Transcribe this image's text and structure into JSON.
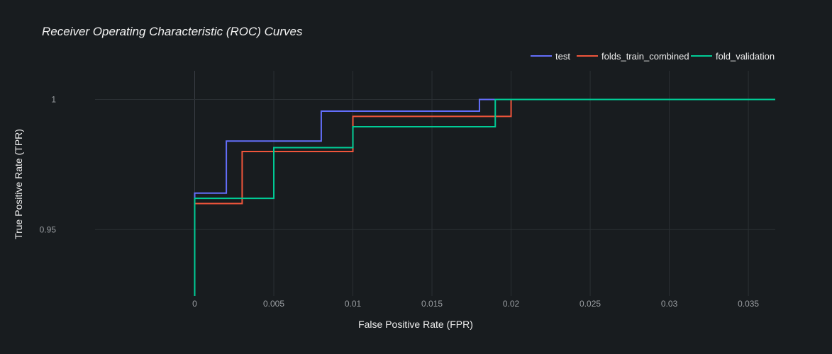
{
  "chart_data": {
    "type": "line",
    "title": "Receiver Operating Characteristic (ROC) Curves",
    "xlabel": "False Positive Rate (FPR)",
    "ylabel": "True Positive Rate (TPR)",
    "xlim": [
      -0.0063,
      0.0367
    ],
    "ylim": [
      0.9245,
      1.011
    ],
    "x_ticks": [
      0,
      0.005,
      0.01,
      0.015,
      0.02,
      0.025,
      0.03,
      0.035
    ],
    "x_tick_labels": [
      "0",
      "0.005",
      "0.01",
      "0.015",
      "0.02",
      "0.025",
      "0.03",
      "0.035"
    ],
    "y_ticks": [
      0.95,
      1
    ],
    "y_tick_labels": [
      "0.95",
      "1"
    ],
    "grid": true,
    "legend_position": "top-right",
    "line_shape": "step-after",
    "series": [
      {
        "name": "test",
        "color": "#636efa",
        "x": [
          0,
          0,
          0.002,
          0.008,
          0.018,
          0.0367
        ],
        "y": [
          0.962,
          0.964,
          0.984,
          0.9955,
          1.0,
          1.0
        ]
      },
      {
        "name": "folds_train_combined",
        "color": "#ef553b",
        "x": [
          0,
          0,
          0.003,
          0.01,
          0.02,
          0.0367
        ],
        "y": [
          0.955,
          0.96,
          0.98,
          0.9935,
          1.0,
          1.0
        ]
      },
      {
        "name": "fold_validation",
        "color": "#00cc96",
        "x": [
          0,
          0,
          0.005,
          0.01,
          0.019,
          0.0367
        ],
        "y": [
          0.9245,
          0.962,
          0.9815,
          0.9895,
          1.0,
          1.0
        ]
      }
    ]
  }
}
